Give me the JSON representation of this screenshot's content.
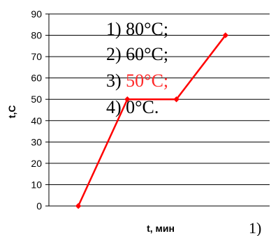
{
  "chart_data": {
    "type": "line",
    "xlabel": "t, мин",
    "ylabel": "t,С",
    "ylim": [
      0,
      90
    ],
    "yticks": [
      0,
      10,
      20,
      30,
      40,
      50,
      60,
      70,
      80,
      90
    ],
    "x": [
      1,
      2,
      3,
      4
    ],
    "series": [
      {
        "values": [
          0,
          50,
          50,
          80
        ],
        "color": "#ff0000"
      }
    ],
    "grid": true,
    "legend": "none"
  },
  "options": {
    "o1": "1) 80°С;",
    "o2": "2) 60°С;",
    "o3_prefix": "3) ",
    "o3_value": "50°С;",
    "o4": "4) 0°С.",
    "highlight_color": "#ff2a2a"
  },
  "corner_label": "1)"
}
